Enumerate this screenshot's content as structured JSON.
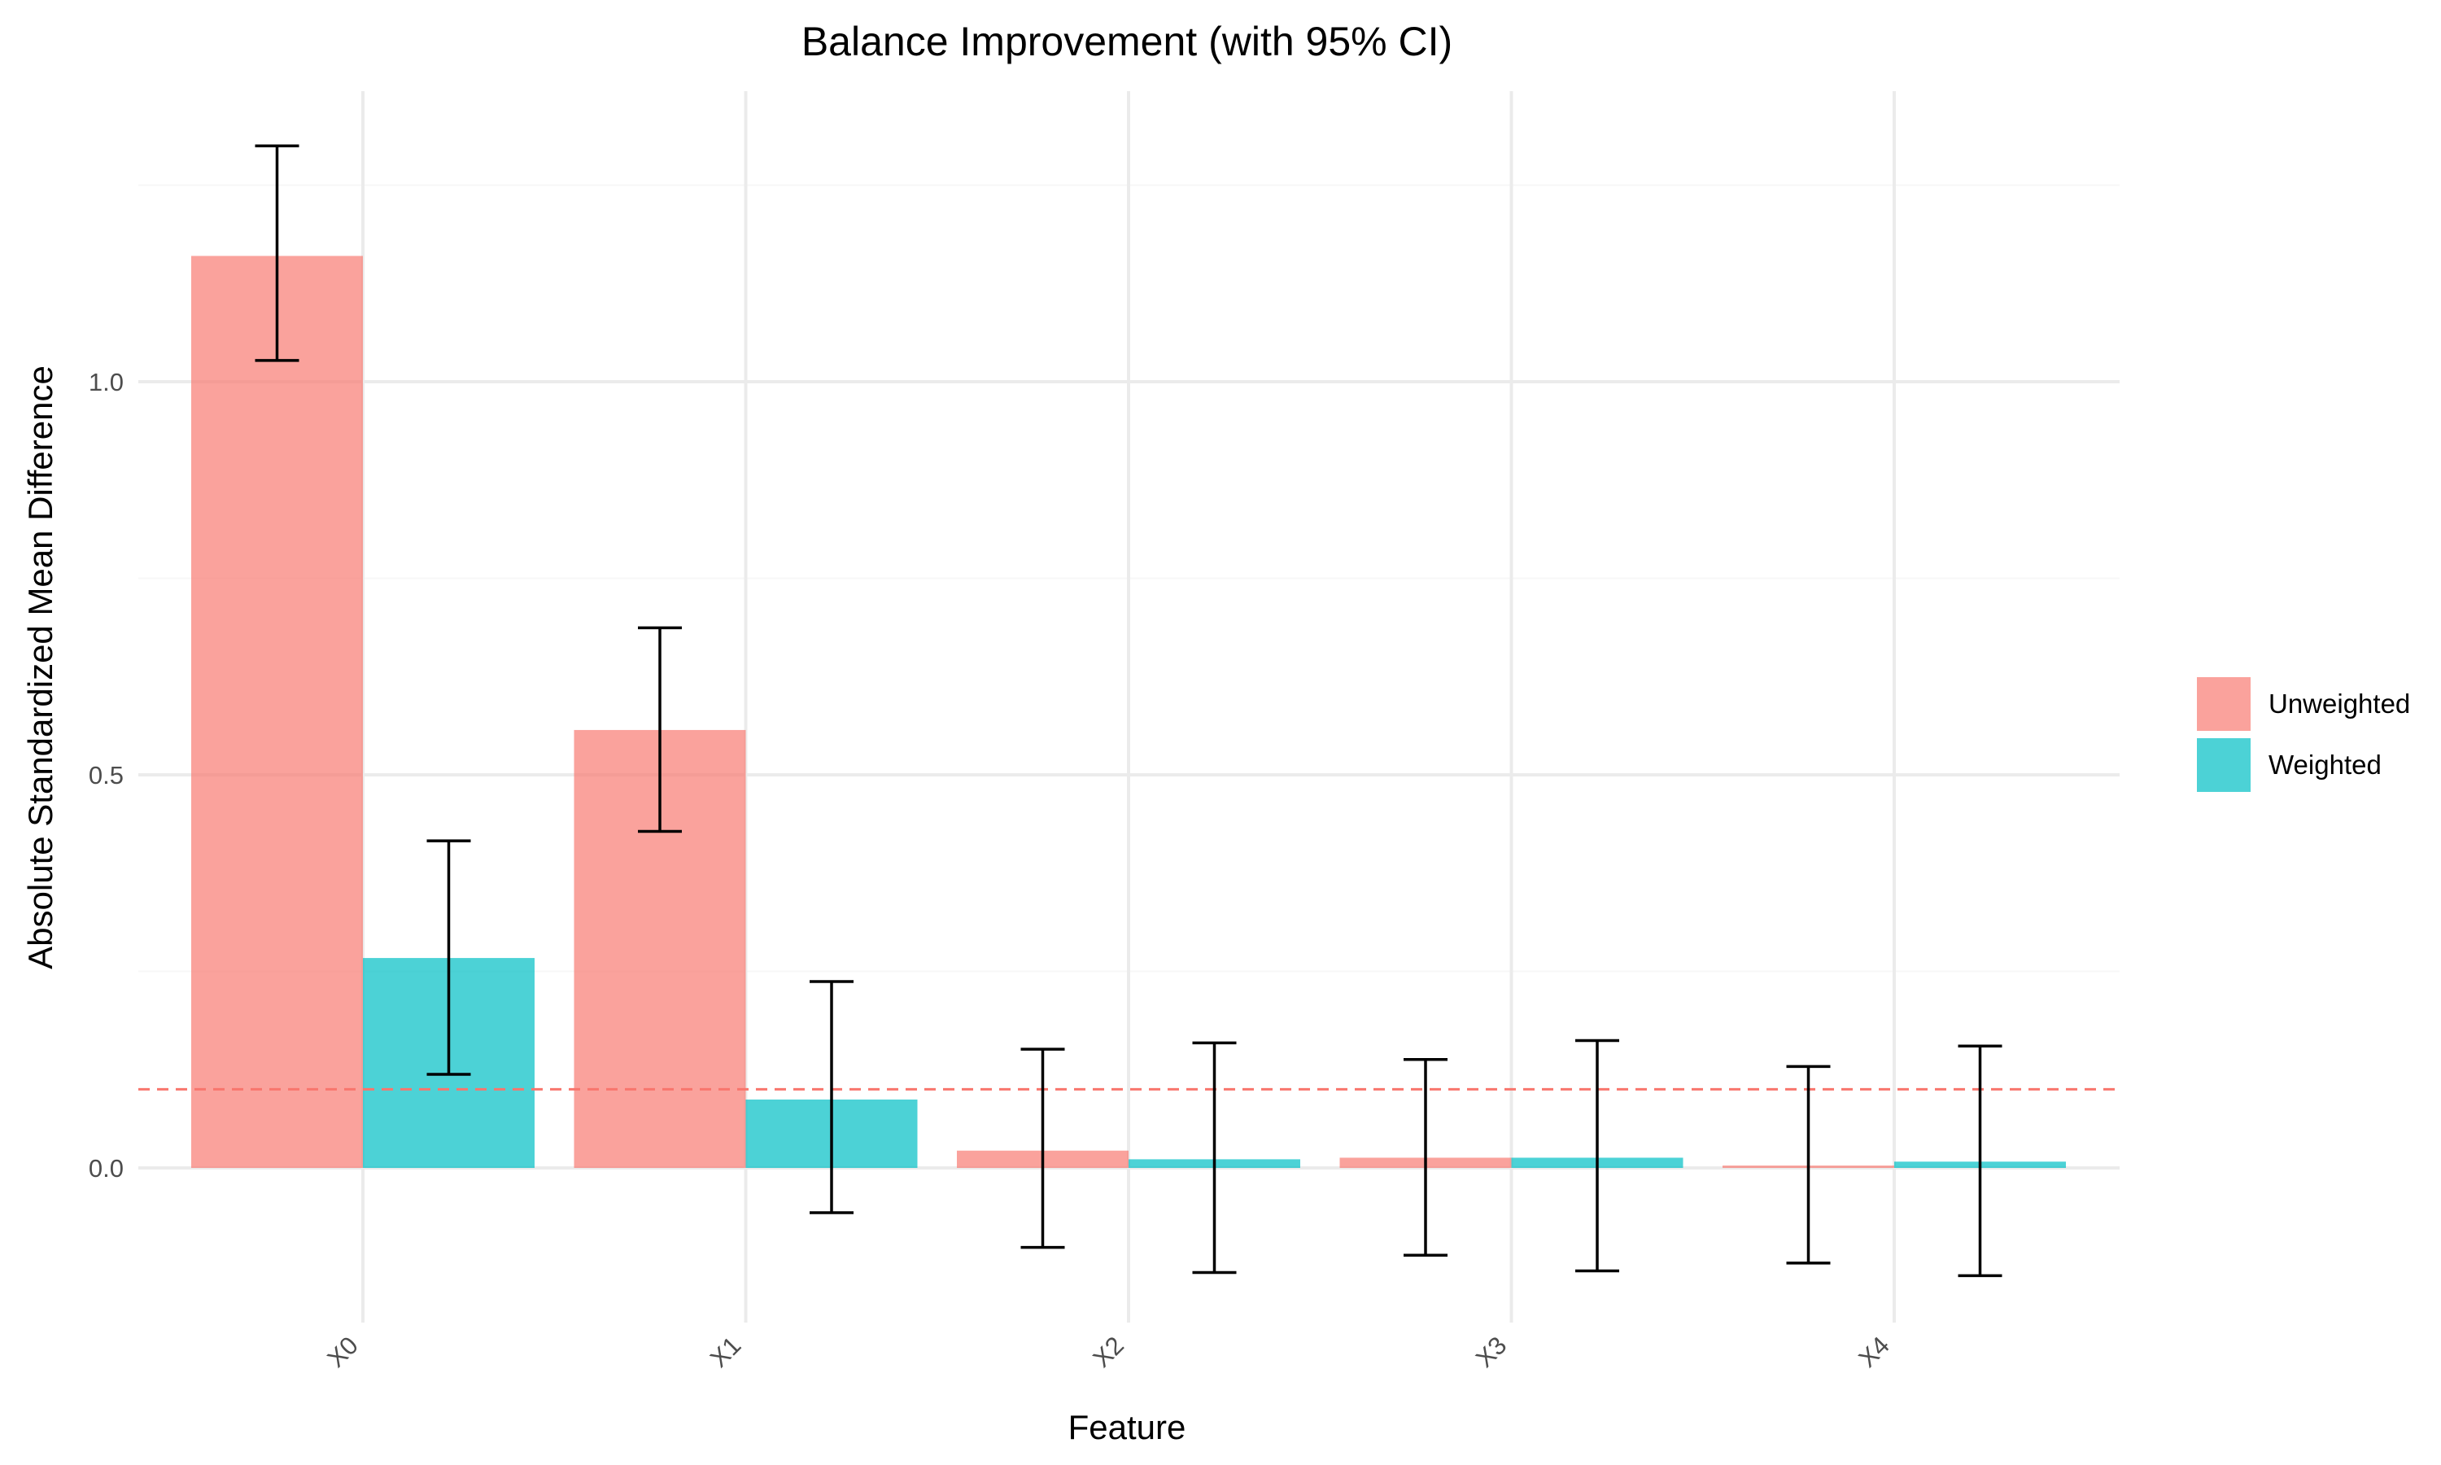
{
  "chart_data": {
    "type": "bar",
    "title": "Balance Improvement (with 95% CI)",
    "xlabel": "Feature",
    "ylabel": "Absolute Standardized Mean Difference",
    "categories": [
      "X0",
      "X1",
      "X2",
      "X3",
      "X4"
    ],
    "series": [
      {
        "name": "Unweighted",
        "color": "#F8766D",
        "values": [
          1.16,
          0.557,
          0.022,
          0.013,
          0.003
        ],
        "ci_low": [
          1.027,
          0.428,
          -0.101,
          -0.111,
          -0.121
        ],
        "ci_high": [
          1.3,
          0.687,
          0.151,
          0.138,
          0.129
        ]
      },
      {
        "name": "Weighted",
        "color": "#00BFC4",
        "values": [
          0.267,
          0.087,
          0.011,
          0.013,
          0.008
        ],
        "ci_low": [
          0.119,
          -0.057,
          -0.133,
          -0.131,
          -0.137
        ],
        "ci_high": [
          0.416,
          0.237,
          0.159,
          0.162,
          0.155
        ]
      }
    ],
    "reference_line": {
      "y": 0.1,
      "color": "#F8766D",
      "style": "dashed"
    },
    "y_ticks": [
      "0.0",
      "0.5",
      "1.0"
    ],
    "y_tick_values": [
      0,
      0.5,
      1.0
    ],
    "ylim": [
      -0.2,
      1.37
    ],
    "grid": true,
    "legend_position": "right"
  }
}
